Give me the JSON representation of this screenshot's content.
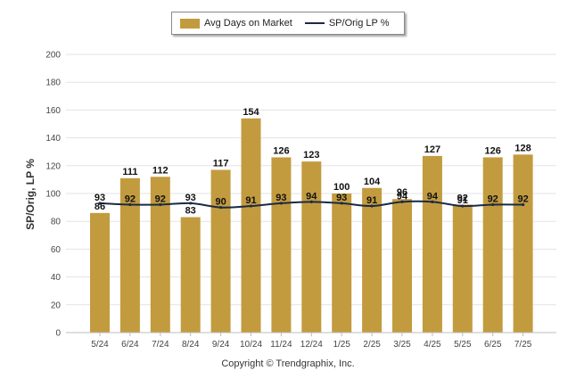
{
  "chart_data": {
    "type": "bar",
    "categories": [
      "5/24",
      "6/24",
      "7/24",
      "8/24",
      "9/24",
      "10/24",
      "11/24",
      "12/24",
      "1/25",
      "2/25",
      "3/25",
      "4/25",
      "5/25",
      "6/25",
      "7/25"
    ],
    "series": [
      {
        "name": "Avg Days on Market",
        "type": "bar",
        "color": "#C39B3F",
        "values": [
          86,
          111,
          112,
          83,
          117,
          154,
          126,
          123,
          100,
          104,
          96,
          127,
          92,
          126,
          128
        ]
      },
      {
        "name": "SP/Orig LP %",
        "type": "line",
        "color": "#1B2A44",
        "values": [
          93,
          92,
          92,
          93,
          90,
          91,
          93,
          94,
          93,
          91,
          94,
          94,
          91,
          92,
          92
        ]
      }
    ],
    "ylabel": "SP/Orig, LP %",
    "ylim": [
      0,
      200
    ],
    "yticks": [
      0,
      20,
      40,
      60,
      80,
      100,
      120,
      140,
      160,
      180,
      200
    ],
    "grid": true,
    "legend_position": "top-center"
  },
  "copyright": "Copyright © Trendgraphix, Inc."
}
